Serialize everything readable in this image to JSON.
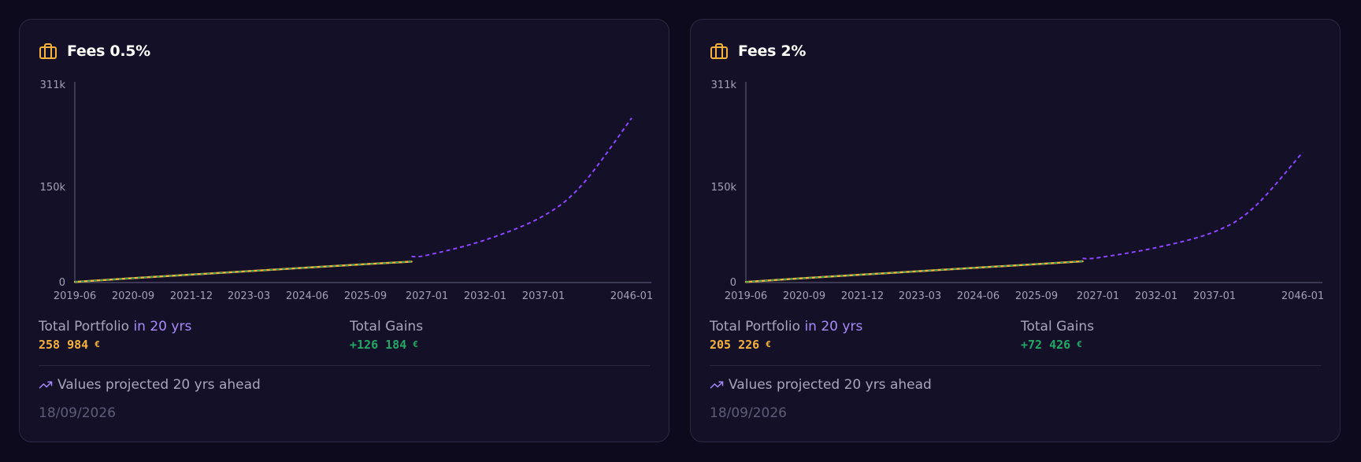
{
  "colors": {
    "background": "#0c0a1c",
    "card": "#131027",
    "actual_line": "#f6b23c",
    "actual_line_overlay": "#22a866",
    "projected_line": "#8b46ff",
    "axis": "#4a4763",
    "gains": "#22a866",
    "portfolio": "#f6b23c",
    "accent": "#a78bfa"
  },
  "icons": {
    "title": "briefcase-icon",
    "note": "trending-up-icon"
  },
  "cards": [
    {
      "title": "Fees 0.5%",
      "portfolio_label": "Total Portfolio",
      "portfolio_horizon": "in 20 yrs",
      "portfolio_value": "258 984",
      "portfolio_currency": "€",
      "gains_label": "Total Gains",
      "gains_value": "+126 184",
      "gains_currency": "€",
      "note": "Values projected 20 yrs ahead",
      "date": "18/09/2026"
    },
    {
      "title": "Fees 2%",
      "portfolio_label": "Total Portfolio",
      "portfolio_horizon": "in 20 yrs",
      "portfolio_value": "205 226",
      "portfolio_currency": "€",
      "gains_label": "Total Gains",
      "gains_value": "+72 426",
      "gains_currency": "€",
      "note": "Values projected 20 yrs ahead",
      "date": "18/09/2026"
    }
  ],
  "chart_data": [
    {
      "type": "line",
      "xlabel": "",
      "ylabel": "",
      "ylim": [
        0,
        311000
      ],
      "y_ticks": [
        0,
        150000,
        311000
      ],
      "y_tick_labels": [
        "0",
        "150k",
        "311k"
      ],
      "x_tick_labels": [
        "2019-06",
        "2020-09",
        "2021-12",
        "2023-03",
        "2024-06",
        "2025-09",
        "2027-01",
        "2032-01",
        "2037-01",
        "2046-01"
      ],
      "grid": false,
      "series": [
        {
          "style": "solid",
          "points": [
            {
              "x": "2019-06",
              "y": 1000
            },
            {
              "x": "2020-09",
              "y": 7000
            },
            {
              "x": "2021-12",
              "y": 12500
            },
            {
              "x": "2023-03",
              "y": 18000
            },
            {
              "x": "2024-06",
              "y": 23500
            },
            {
              "x": "2025-09",
              "y": 29000
            },
            {
              "x": "2026-09",
              "y": 33000
            }
          ]
        },
        {
          "style": "dashed",
          "points": [
            {
              "x": "2026-09",
              "y": 41000
            },
            {
              "x": "2027-01",
              "y": 43000
            },
            {
              "x": "2032-01",
              "y": 67000
            },
            {
              "x": "2037-01",
              "y": 105000
            },
            {
              "x": "2041-01",
              "y": 155000
            },
            {
              "x": "2046-01",
              "y": 259000
            }
          ]
        }
      ]
    },
    {
      "type": "line",
      "xlabel": "",
      "ylabel": "",
      "ylim": [
        0,
        311000
      ],
      "y_ticks": [
        0,
        150000,
        311000
      ],
      "y_tick_labels": [
        "0",
        "150k",
        "311k"
      ],
      "x_tick_labels": [
        "2019-06",
        "2020-09",
        "2021-12",
        "2023-03",
        "2024-06",
        "2025-09",
        "2027-01",
        "2032-01",
        "2037-01",
        "2046-01"
      ],
      "grid": false,
      "series": [
        {
          "style": "solid",
          "points": [
            {
              "x": "2019-06",
              "y": 1000
            },
            {
              "x": "2020-09",
              "y": 7000
            },
            {
              "x": "2021-12",
              "y": 12500
            },
            {
              "x": "2023-03",
              "y": 18000
            },
            {
              "x": "2024-06",
              "y": 23500
            },
            {
              "x": "2025-09",
              "y": 29000
            },
            {
              "x": "2026-09",
              "y": 33500
            }
          ]
        },
        {
          "style": "dashed",
          "points": [
            {
              "x": "2026-09",
              "y": 38000
            },
            {
              "x": "2027-01",
              "y": 39000
            },
            {
              "x": "2032-01",
              "y": 55000
            },
            {
              "x": "2037-01",
              "y": 80000
            },
            {
              "x": "2041-01",
              "y": 118000
            },
            {
              "x": "2046-01",
              "y": 205000
            }
          ]
        }
      ]
    }
  ]
}
